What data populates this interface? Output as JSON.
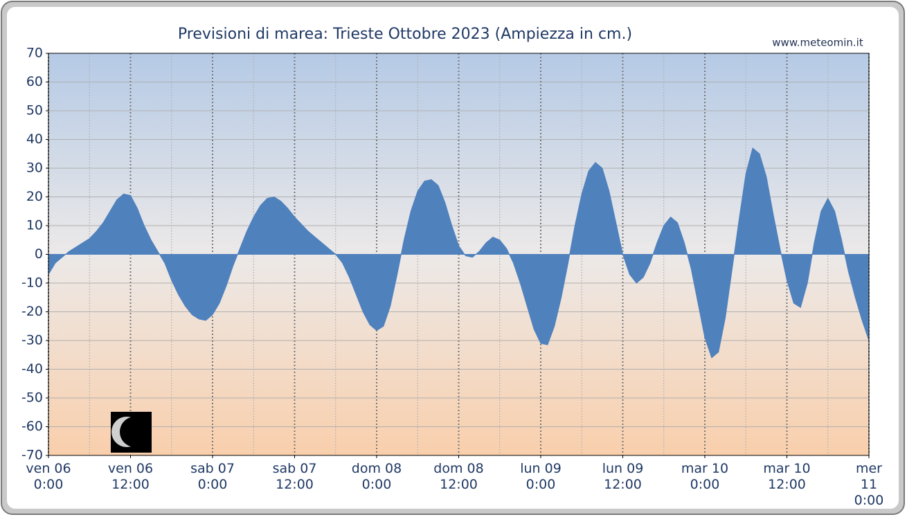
{
  "chart_data": {
    "type": "area",
    "title": "Previsioni di marea: Trieste Ottobre 2023 (Ampiezza in cm.)",
    "source": "www.meteomin.it",
    "color": "#4f81bd",
    "grid": true,
    "xlim": [
      0,
      120
    ],
    "xticks": [
      {
        "value": 0,
        "label": "ven 06\n0:00"
      },
      {
        "value": 12,
        "label": "ven 06\n12:00"
      },
      {
        "value": 24,
        "label": "sab 07\n0:00"
      },
      {
        "value": 36,
        "label": "sab 07\n12:00"
      },
      {
        "value": 48,
        "label": "dom 08\n0:00"
      },
      {
        "value": 60,
        "label": "dom 08\n12:00"
      },
      {
        "value": 72,
        "label": "lun 09\n0:00"
      },
      {
        "value": 84,
        "label": "lun 09\n12:00"
      },
      {
        "value": 96,
        "label": "mar 10\n0:00"
      },
      {
        "value": 108,
        "label": "mar 10\n12:00"
      },
      {
        "value": 120,
        "label": "mer 11\n0:00"
      }
    ],
    "ylim": [
      -70,
      70
    ],
    "yticks": [
      -70,
      -60,
      -50,
      -40,
      -30,
      -20,
      -10,
      0,
      10,
      20,
      30,
      40,
      50,
      60,
      70
    ],
    "x": [
      0,
      1,
      2,
      3,
      4,
      5,
      6,
      7,
      8,
      9,
      10,
      11,
      12,
      13,
      14,
      15,
      16,
      17,
      18,
      19,
      20,
      21,
      22,
      23,
      24,
      25,
      26,
      27,
      28,
      29,
      30,
      31,
      32,
      33,
      34,
      35,
      36,
      37,
      38,
      39,
      40,
      41,
      42,
      43,
      44,
      45,
      46,
      47,
      48,
      49,
      50,
      51,
      52,
      53,
      54,
      55,
      56,
      57,
      58,
      59,
      60,
      61,
      62,
      63,
      64,
      65,
      66,
      67,
      68,
      69,
      70,
      71,
      72,
      73,
      74,
      75,
      76,
      77,
      78,
      79,
      80,
      81,
      82,
      83,
      84,
      85,
      86,
      87,
      88,
      89,
      90,
      91,
      92,
      93,
      94,
      95,
      96,
      97,
      98,
      99,
      100,
      101,
      102,
      103,
      104,
      105,
      106,
      107,
      108,
      109,
      110,
      111,
      112,
      113,
      114,
      115,
      116,
      117,
      118,
      119,
      120
    ],
    "values": [
      -7,
      -3,
      -1,
      1,
      2.5,
      4,
      5.5,
      8,
      11,
      15,
      19,
      21,
      20.5,
      16,
      10,
      5,
      1,
      -3,
      -9,
      -14,
      -18,
      -21,
      -22.5,
      -23,
      -21,
      -17,
      -11,
      -4,
      2,
      8,
      13,
      17,
      19.5,
      20,
      18.5,
      16,
      13,
      10.5,
      8,
      6,
      4,
      2,
      0,
      -3,
      -8,
      -14,
      -20,
      -24.5,
      -26.5,
      -25,
      -18,
      -7,
      5,
      15,
      22,
      25.5,
      26,
      24,
      18,
      10,
      3,
      -0.5,
      -1,
      1,
      4,
      6,
      5,
      2,
      -3,
      -10,
      -18,
      -26,
      -31,
      -31.5,
      -25,
      -15,
      -3,
      10,
      21,
      29,
      32,
      30,
      22,
      11,
      0,
      -7,
      -10,
      -8,
      -3,
      4,
      10,
      13,
      11,
      4,
      -5,
      -17,
      -29,
      -36,
      -34,
      -22,
      -5,
      12,
      28,
      37,
      35,
      27,
      14,
      2,
      -9,
      -17,
      -18.5,
      -10,
      4,
      15,
      19.5,
      15,
      5,
      -6,
      -15,
      -23,
      -30
    ]
  }
}
